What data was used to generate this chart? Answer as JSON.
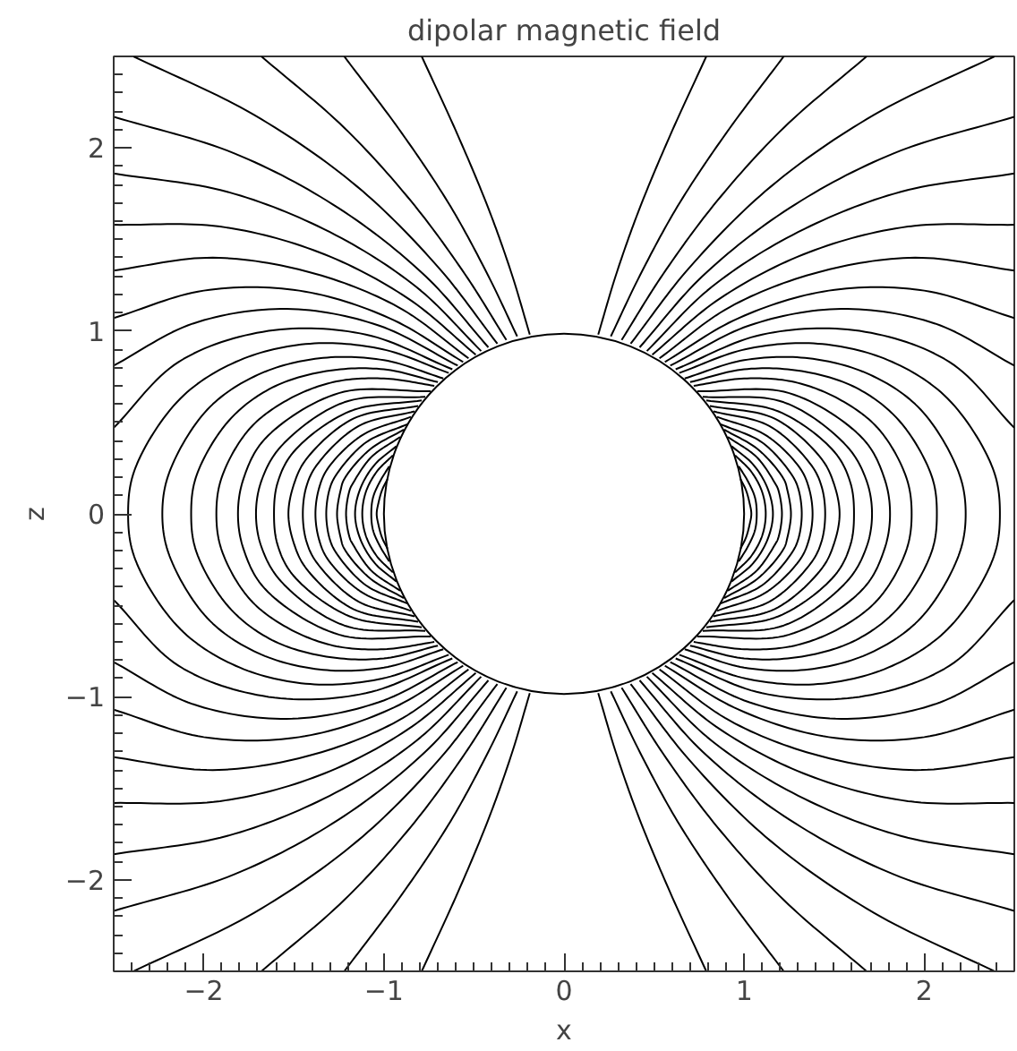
{
  "chart_data": {
    "type": "line",
    "title": "dipolar magnetic field",
    "xlabel": "x",
    "ylabel": "z",
    "xlim": [
      -2.5,
      2.5
    ],
    "ylim": [
      -2.5,
      2.5
    ],
    "xticks": [
      -2,
      -1,
      0,
      1,
      2
    ],
    "yticks": [
      -2,
      -1,
      0,
      1,
      2
    ],
    "series": [
      {
        "color": "#000000",
        "x": [
          0.19,
          0.29,
          0.42,
          0.59,
          0.79
        ],
        "values": [
          0.98,
          1.31,
          1.67,
          2.07,
          2.5
        ]
      },
      {
        "color": "#000000",
        "x": [
          0.19,
          0.29,
          0.42,
          0.59,
          0.79
        ],
        "values": [
          -0.98,
          -1.31,
          -1.67,
          -2.07,
          -2.5
        ]
      },
      {
        "color": "#000000",
        "x": [
          0.26,
          0.42,
          0.63,
          0.9,
          1.22
        ],
        "values": [
          0.97,
          1.3,
          1.68,
          2.08,
          2.5
        ]
      },
      {
        "color": "#000000",
        "x": [
          0.26,
          0.42,
          0.63,
          0.9,
          1.22
        ],
        "values": [
          -0.97,
          -1.3,
          -1.68,
          -2.08,
          -2.5
        ]
      },
      {
        "color": "#000000",
        "x": [
          0.32,
          0.55,
          0.85,
          1.22,
          1.68
        ],
        "values": [
          0.95,
          1.31,
          1.71,
          2.11,
          2.5
        ]
      },
      {
        "color": "#000000",
        "x": [
          0.32,
          0.55,
          0.85,
          1.22,
          1.68
        ],
        "values": [
          -0.95,
          -1.31,
          -1.71,
          -2.11,
          -2.5
        ]
      },
      {
        "color": "#000000",
        "x": [
          0.37,
          0.7,
          1.15,
          1.72,
          2.39
        ],
        "values": [
          0.93,
          1.35,
          1.79,
          2.18,
          2.5
        ]
      },
      {
        "color": "#000000",
        "x": [
          0.37,
          0.7,
          1.15,
          1.72,
          2.39
        ],
        "values": [
          -0.93,
          -1.35,
          -1.79,
          -2.18,
          -2.5
        ]
      },
      {
        "color": "#000000",
        "x": [
          0.42,
          0.77,
          1.25,
          1.83,
          2.5
        ],
        "values": [
          0.91,
          1.3,
          1.67,
          1.97,
          2.17
        ]
      },
      {
        "color": "#000000",
        "x": [
          0.42,
          0.77,
          1.25,
          1.83,
          2.5
        ],
        "values": [
          -0.91,
          -1.3,
          -1.67,
          -1.97,
          -2.17
        ]
      },
      {
        "color": "#000000",
        "x": [
          0.46,
          0.82,
          1.3,
          1.87,
          2.5
        ],
        "values": [
          0.89,
          1.24,
          1.54,
          1.76,
          1.86
        ]
      },
      {
        "color": "#000000",
        "x": [
          0.46,
          0.82,
          1.3,
          1.87,
          2.5
        ],
        "values": [
          -0.89,
          -1.24,
          -1.54,
          -1.76,
          -1.86
        ]
      },
      {
        "color": "#000000",
        "x": [
          0.49,
          0.87,
          1.36,
          1.91,
          2.5
        ],
        "values": [
          0.87,
          1.18,
          1.43,
          1.57,
          1.58
        ]
      },
      {
        "color": "#000000",
        "x": [
          0.49,
          0.87,
          1.36,
          1.91,
          2.5
        ],
        "values": [
          -0.87,
          -1.18,
          -1.43,
          -1.57,
          -1.58
        ]
      },
      {
        "color": "#000000",
        "x": [
          0.53,
          0.92,
          1.41,
          1.95,
          2.5
        ],
        "values": [
          0.85,
          1.13,
          1.32,
          1.4,
          1.33
        ]
      },
      {
        "color": "#000000",
        "x": [
          0.53,
          0.92,
          1.41,
          1.95,
          2.5
        ],
        "values": [
          -0.85,
          -1.13,
          -1.32,
          -1.4,
          -1.33
        ]
      },
      {
        "color": "#000000",
        "x": [
          0.56,
          0.97,
          1.47,
          2.0,
          2.5
        ],
        "values": [
          0.83,
          1.07,
          1.22,
          1.22,
          1.07
        ]
      },
      {
        "color": "#000000",
        "x": [
          0.56,
          0.97,
          1.47,
          2.0,
          2.5
        ],
        "values": [
          -0.83,
          -1.07,
          -1.22,
          -1.22,
          -1.07
        ]
      },
      {
        "color": "#000000",
        "x": [
          0.59,
          1.03,
          1.54,
          2.06,
          2.5
        ],
        "values": [
          0.81,
          1.03,
          1.12,
          1.04,
          0.81
        ]
      },
      {
        "color": "#000000",
        "x": [
          0.59,
          1.03,
          1.54,
          2.06,
          2.5
        ],
        "values": [
          -0.81,
          -1.03,
          -1.12,
          -1.04,
          -0.81
        ]
      },
      {
        "color": "#000000",
        "x": [
          0.62,
          1.1,
          1.64,
          2.14,
          2.5
        ],
        "values": [
          0.79,
          0.98,
          1.0,
          0.83,
          0.47
        ]
      },
      {
        "color": "#000000",
        "x": [
          0.62,
          1.1,
          1.64,
          2.14,
          2.5
        ],
        "values": [
          -0.79,
          -0.98,
          -1.0,
          -0.83,
          -0.47
        ]
      },
      {
        "color": "#000000",
        "x": [
          0.64,
          1.01,
          1.41,
          1.8,
          2.13,
          2.38,
          2.42,
          2.38,
          2.13,
          1.8,
          1.41,
          1.01,
          0.64
        ],
        "values": [
          0.77,
          0.9,
          0.93,
          0.84,
          0.63,
          0.25,
          0,
          -0.25,
          -0.63,
          -0.84,
          -0.93,
          -0.9,
          -0.77
        ]
      },
      {
        "color": "#000000",
        "x": [
          0.67,
          1.0,
          1.36,
          1.7,
          1.98,
          2.19,
          2.23,
          2.19,
          1.98,
          1.7,
          1.36,
          1.0,
          0.67
        ],
        "values": [
          0.74,
          0.84,
          0.85,
          0.76,
          0.57,
          0.23,
          0,
          -0.23,
          -0.57,
          -0.76,
          -0.85,
          -0.84,
          -0.74
        ]
      },
      {
        "color": "#000000",
        "x": [
          0.7,
          1.0,
          1.32,
          1.62,
          1.86,
          2.04,
          2.07,
          2.04,
          1.86,
          1.62,
          1.32,
          1.0,
          0.7
        ],
        "values": [
          0.72,
          0.79,
          0.78,
          0.69,
          0.51,
          0.21,
          0,
          -0.21,
          -0.51,
          -0.69,
          -0.78,
          -0.79,
          -0.72
        ]
      },
      {
        "color": "#000000",
        "x": [
          0.72,
          1.0,
          1.28,
          1.54,
          1.75,
          1.9,
          1.93,
          1.9,
          1.75,
          1.54,
          1.28,
          1.0,
          0.72
        ],
        "values": [
          0.7,
          0.74,
          0.72,
          0.62,
          0.46,
          0.2,
          0,
          -0.2,
          -0.46,
          -0.62,
          -0.72,
          -0.74,
          -0.7
        ]
      },
      {
        "color": "#000000",
        "x": [
          0.74,
          1.25,
          1.66,
          1.78,
          1.81,
          1.78,
          1.66,
          1.25,
          0.74
        ],
        "values": [
          0.67,
          0.66,
          0.41,
          0.19,
          0,
          -0.19,
          -0.41,
          -0.66,
          -0.67
        ]
      },
      {
        "color": "#000000",
        "x": [
          0.77,
          1.22,
          1.57,
          1.68,
          1.71,
          1.68,
          1.57,
          1.22,
          0.77
        ],
        "values": [
          0.64,
          0.61,
          0.37,
          0.18,
          0,
          -0.18,
          -0.37,
          -0.61,
          -0.64
        ]
      },
      {
        "color": "#000000",
        "x": [
          0.79,
          1.19,
          1.5,
          1.59,
          1.61,
          1.59,
          1.5,
          1.19,
          0.79
        ],
        "values": [
          0.62,
          0.56,
          0.34,
          0.17,
          0,
          -0.17,
          -0.34,
          -0.56,
          -0.62
        ]
      },
      {
        "color": "#000000",
        "x": [
          0.81,
          1.17,
          1.43,
          1.5,
          1.53,
          1.5,
          1.43,
          1.17,
          0.81
        ],
        "values": [
          0.59,
          0.52,
          0.3,
          0.16,
          0,
          -0.16,
          -0.3,
          -0.52,
          -0.59
        ]
      },
      {
        "color": "#000000",
        "x": [
          0.83,
          1.14,
          1.37,
          1.43,
          1.45,
          1.43,
          1.37,
          1.14,
          0.83
        ],
        "values": [
          0.56,
          0.48,
          0.27,
          0.15,
          0,
          -0.15,
          -0.27,
          -0.48,
          -0.56
        ]
      },
      {
        "color": "#000000",
        "x": [
          0.85,
          1.12,
          1.31,
          1.36,
          1.38,
          1.36,
          1.31,
          1.12,
          0.85
        ],
        "values": [
          0.53,
          0.43,
          0.25,
          0.14,
          0,
          -0.14,
          -0.25,
          -0.43,
          -0.53
        ]
      },
      {
        "color": "#000000",
        "x": [
          0.87,
          1.1,
          1.26,
          1.3,
          1.32,
          1.3,
          1.26,
          1.1,
          0.87
        ],
        "values": [
          0.49,
          0.39,
          0.22,
          0.14,
          0,
          -0.14,
          -0.22,
          -0.39,
          -0.49
        ]
      },
      {
        "color": "#000000",
        "x": [
          0.89,
          1.08,
          1.22,
          1.24,
          1.26,
          1.24,
          1.22,
          1.08,
          0.89
        ],
        "values": [
          0.46,
          0.35,
          0.19,
          0.13,
          0,
          -0.13,
          -0.19,
          -0.35,
          -0.46
        ]
      },
      {
        "color": "#000000",
        "x": [
          0.91,
          1.07,
          1.17,
          1.19,
          1.21,
          1.19,
          1.17,
          1.07,
          0.91
        ],
        "values": [
          0.42,
          0.31,
          0.17,
          0.13,
          0,
          -0.13,
          -0.17,
          -0.31,
          -0.42
        ]
      },
      {
        "color": "#000000",
        "x": [
          0.93,
          1.05,
          1.13,
          1.16,
          1.13,
          1.05,
          0.93
        ],
        "values": [
          0.37,
          0.27,
          0.14,
          0,
          -0.14,
          -0.27,
          -0.37
        ]
      },
      {
        "color": "#000000",
        "x": [
          0.95,
          1.04,
          1.1,
          1.12,
          1.1,
          1.04,
          0.95
        ],
        "values": [
          0.32,
          0.23,
          0.12,
          0,
          -0.12,
          -0.23,
          -0.32
        ]
      },
      {
        "color": "#000000",
        "x": [
          0.97,
          1.02,
          1.06,
          1.07,
          1.06,
          1.02,
          0.97
        ],
        "values": [
          0.26,
          0.18,
          0.09,
          0,
          -0.09,
          -0.18,
          -0.26
        ]
      },
      {
        "color": "#000000",
        "x": [
          0.98,
          1.01,
          1.03,
          1.04,
          1.03,
          1.01,
          0.98
        ],
        "values": [
          0.19,
          0.13,
          0.06,
          0,
          -0.06,
          -0.13,
          -0.19
        ]
      },
      {
        "color": "#000000",
        "x": [
          -0.19,
          -0.29,
          -0.42,
          -0.59,
          -0.79
        ],
        "values": [
          0.98,
          1.31,
          1.67,
          2.07,
          2.5
        ]
      },
      {
        "color": "#000000",
        "x": [
          -0.19,
          -0.29,
          -0.42,
          -0.59,
          -0.79
        ],
        "values": [
          -0.98,
          -1.31,
          -1.67,
          -2.07,
          -2.5
        ]
      },
      {
        "color": "#000000",
        "x": [
          -0.26,
          -0.42,
          -0.63,
          -0.9,
          -1.22
        ],
        "values": [
          0.97,
          1.3,
          1.68,
          2.08,
          2.5
        ]
      },
      {
        "color": "#000000",
        "x": [
          -0.26,
          -0.42,
          -0.63,
          -0.9,
          -1.22
        ],
        "values": [
          -0.97,
          -1.3,
          -1.68,
          -2.08,
          -2.5
        ]
      },
      {
        "color": "#000000",
        "x": [
          -0.32,
          -0.55,
          -0.85,
          -1.22,
          -1.68
        ],
        "values": [
          0.95,
          1.31,
          1.71,
          2.11,
          2.5
        ]
      },
      {
        "color": "#000000",
        "x": [
          -0.32,
          -0.55,
          -0.85,
          -1.22,
          -1.68
        ],
        "values": [
          -0.95,
          -1.31,
          -1.71,
          -2.11,
          -2.5
        ]
      },
      {
        "color": "#000000",
        "x": [
          -0.37,
          -0.7,
          -1.15,
          -1.72,
          -2.39
        ],
        "values": [
          0.93,
          1.35,
          1.79,
          2.18,
          2.5
        ]
      },
      {
        "color": "#000000",
        "x": [
          -0.37,
          -0.7,
          -1.15,
          -1.72,
          -2.39
        ],
        "values": [
          -0.93,
          -1.35,
          -1.79,
          -2.18,
          -2.5
        ]
      },
      {
        "color": "#000000",
        "x": [
          -0.42,
          -0.77,
          -1.25,
          -1.83,
          -2.5
        ],
        "values": [
          0.91,
          1.3,
          1.67,
          1.97,
          2.17
        ]
      },
      {
        "color": "#000000",
        "x": [
          -0.42,
          -0.77,
          -1.25,
          -1.83,
          -2.5
        ],
        "values": [
          -0.91,
          -1.3,
          -1.67,
          -1.97,
          -2.17
        ]
      },
      {
        "color": "#000000",
        "x": [
          -0.46,
          -0.82,
          -1.3,
          -1.87,
          -2.5
        ],
        "values": [
          0.89,
          1.24,
          1.54,
          1.76,
          1.86
        ]
      },
      {
        "color": "#000000",
        "x": [
          -0.46,
          -0.82,
          -1.3,
          -1.87,
          -2.5
        ],
        "values": [
          -0.89,
          -1.24,
          -1.54,
          -1.76,
          -1.86
        ]
      },
      {
        "color": "#000000",
        "x": [
          -0.49,
          -0.87,
          -1.36,
          -1.91,
          -2.5
        ],
        "values": [
          0.87,
          1.18,
          1.43,
          1.57,
          1.58
        ]
      },
      {
        "color": "#000000",
        "x": [
          -0.49,
          -0.87,
          -1.36,
          -1.91,
          -2.5
        ],
        "values": [
          -0.87,
          -1.18,
          -1.43,
          -1.57,
          -1.58
        ]
      },
      {
        "color": "#000000",
        "x": [
          -0.53,
          -0.92,
          -1.41,
          -1.95,
          -2.5
        ],
        "values": [
          0.85,
          1.13,
          1.32,
          1.4,
          1.33
        ]
      },
      {
        "color": "#000000",
        "x": [
          -0.53,
          -0.92,
          -1.41,
          -1.95,
          -2.5
        ],
        "values": [
          -0.85,
          -1.13,
          -1.32,
          -1.4,
          -1.33
        ]
      },
      {
        "color": "#000000",
        "x": [
          -0.56,
          -0.97,
          -1.47,
          -2.0,
          -2.5
        ],
        "values": [
          0.83,
          1.07,
          1.22,
          1.22,
          1.07
        ]
      },
      {
        "color": "#000000",
        "x": [
          -0.56,
          -0.97,
          -1.47,
          -2.0,
          -2.5
        ],
        "values": [
          -0.83,
          -1.07,
          -1.22,
          -1.22,
          -1.07
        ]
      },
      {
        "color": "#000000",
        "x": [
          -0.59,
          -1.03,
          -1.54,
          -2.06,
          -2.5
        ],
        "values": [
          0.81,
          1.03,
          1.12,
          1.04,
          0.81
        ]
      },
      {
        "color": "#000000",
        "x": [
          -0.59,
          -1.03,
          -1.54,
          -2.06,
          -2.5
        ],
        "values": [
          -0.81,
          -1.03,
          -1.12,
          -1.04,
          -0.81
        ]
      },
      {
        "color": "#000000",
        "x": [
          -0.62,
          -1.1,
          -1.64,
          -2.14,
          -2.5
        ],
        "values": [
          0.79,
          0.98,
          1.0,
          0.83,
          0.47
        ]
      },
      {
        "color": "#000000",
        "x": [
          -0.62,
          -1.1,
          -1.64,
          -2.14,
          -2.5
        ],
        "values": [
          -0.79,
          -0.98,
          -1.0,
          -0.83,
          -0.47
        ]
      },
      {
        "color": "#000000",
        "x": [
          -0.64,
          -1.01,
          -1.41,
          -1.8,
          -2.13,
          -2.38,
          -2.42,
          -2.38,
          -2.13,
          -1.8,
          -1.41,
          -1.01,
          -0.64
        ],
        "values": [
          0.77,
          0.9,
          0.93,
          0.84,
          0.63,
          0.25,
          0,
          -0.25,
          -0.63,
          -0.84,
          -0.93,
          -0.9,
          -0.77
        ]
      },
      {
        "color": "#000000",
        "x": [
          -0.67,
          -1.0,
          -1.36,
          -1.7,
          -1.98,
          -2.19,
          -2.23,
          -2.19,
          -1.98,
          -1.7,
          -1.36,
          -1.0,
          -0.67
        ],
        "values": [
          0.74,
          0.84,
          0.85,
          0.76,
          0.57,
          0.23,
          0,
          -0.23,
          -0.57,
          -0.76,
          -0.85,
          -0.84,
          -0.74
        ]
      },
      {
        "color": "#000000",
        "x": [
          -0.7,
          -1.0,
          -1.32,
          -1.62,
          -1.86,
          -2.04,
          -2.07,
          -2.04,
          -1.86,
          -1.62,
          -1.32,
          -1.0,
          -0.7
        ],
        "values": [
          0.72,
          0.79,
          0.78,
          0.69,
          0.51,
          0.21,
          0,
          -0.21,
          -0.51,
          -0.69,
          -0.78,
          -0.79,
          -0.72
        ]
      },
      {
        "color": "#000000",
        "x": [
          -0.72,
          -1.0,
          -1.28,
          -1.54,
          -1.75,
          -1.9,
          -1.93,
          -1.9,
          -1.75,
          -1.54,
          -1.28,
          -1.0,
          -0.72
        ],
        "values": [
          0.7,
          0.74,
          0.72,
          0.62,
          0.46,
          0.2,
          0,
          -0.2,
          -0.46,
          -0.62,
          -0.72,
          -0.74,
          -0.7
        ]
      },
      {
        "color": "#000000",
        "x": [
          -0.74,
          -1.25,
          -1.66,
          -1.78,
          -1.81,
          -1.78,
          -1.66,
          -1.25,
          -0.74
        ],
        "values": [
          0.67,
          0.66,
          0.41,
          0.19,
          0,
          -0.19,
          -0.41,
          -0.66,
          -0.67
        ]
      },
      {
        "color": "#000000",
        "x": [
          -0.77,
          -1.22,
          -1.57,
          -1.68,
          -1.71,
          -1.68,
          -1.57,
          -1.22,
          -0.77
        ],
        "values": [
          0.64,
          0.61,
          0.37,
          0.18,
          0,
          -0.18,
          -0.37,
          -0.61,
          -0.64
        ]
      },
      {
        "color": "#000000",
        "x": [
          -0.79,
          -1.19,
          -1.5,
          -1.59,
          -1.61,
          -1.59,
          -1.5,
          -1.19,
          -0.79
        ],
        "values": [
          0.62,
          0.56,
          0.34,
          0.17,
          0,
          -0.17,
          -0.34,
          -0.56,
          -0.62
        ]
      },
      {
        "color": "#000000",
        "x": [
          -0.81,
          -1.17,
          -1.43,
          -1.5,
          -1.53,
          -1.5,
          -1.43,
          -1.17,
          -0.81
        ],
        "values": [
          0.59,
          0.52,
          0.3,
          0.16,
          0,
          -0.16,
          -0.3,
          -0.52,
          -0.59
        ]
      },
      {
        "color": "#000000",
        "x": [
          -0.83,
          -1.14,
          -1.37,
          -1.43,
          -1.45,
          -1.43,
          -1.37,
          -1.14,
          -0.83
        ],
        "values": [
          0.56,
          0.48,
          0.27,
          0.15,
          0,
          -0.15,
          -0.27,
          -0.48,
          -0.56
        ]
      },
      {
        "color": "#000000",
        "x": [
          -0.85,
          -1.12,
          -1.31,
          -1.36,
          -1.38,
          -1.36,
          -1.31,
          -1.12,
          -0.85
        ],
        "values": [
          0.53,
          0.43,
          0.25,
          0.14,
          0,
          -0.14,
          -0.25,
          -0.43,
          -0.53
        ]
      },
      {
        "color": "#000000",
        "x": [
          -0.87,
          -1.1,
          -1.26,
          -1.3,
          -1.32,
          -1.3,
          -1.26,
          -1.1,
          -0.87
        ],
        "values": [
          0.49,
          0.39,
          0.22,
          0.14,
          0,
          -0.14,
          -0.22,
          -0.39,
          -0.49
        ]
      },
      {
        "color": "#000000",
        "x": [
          -0.89,
          -1.08,
          -1.22,
          -1.24,
          -1.26,
          -1.24,
          -1.22,
          -1.08,
          -0.89
        ],
        "values": [
          0.46,
          0.35,
          0.19,
          0.13,
          0,
          -0.13,
          -0.19,
          -0.35,
          -0.46
        ]
      },
      {
        "color": "#000000",
        "x": [
          -0.91,
          -1.07,
          -1.17,
          -1.19,
          -1.21,
          -1.19,
          -1.17,
          -1.07,
          -0.91
        ],
        "values": [
          0.42,
          0.31,
          0.17,
          0.13,
          0,
          -0.13,
          -0.17,
          -0.31,
          -0.42
        ]
      },
      {
        "color": "#000000",
        "x": [
          -0.93,
          -1.05,
          -1.13,
          -1.16,
          -1.13,
          -1.05,
          -0.93
        ],
        "values": [
          0.37,
          0.27,
          0.14,
          0,
          -0.14,
          -0.27,
          -0.37
        ]
      },
      {
        "color": "#000000",
        "x": [
          -0.95,
          -1.04,
          -1.1,
          -1.12,
          -1.1,
          -1.04,
          -0.95
        ],
        "values": [
          0.32,
          0.23,
          0.12,
          0,
          -0.12,
          -0.23,
          -0.32
        ]
      },
      {
        "color": "#000000",
        "x": [
          -0.97,
          -1.02,
          -1.06,
          -1.07,
          -1.06,
          -1.02,
          -0.97
        ],
        "values": [
          0.26,
          0.18,
          0.09,
          0,
          -0.09,
          -0.18,
          -0.26
        ]
      },
      {
        "color": "#000000",
        "x": [
          -0.98,
          -1.01,
          -1.03,
          -1.04,
          -1.03,
          -1.01,
          -0.98
        ],
        "values": [
          0.19,
          0.13,
          0.06,
          0,
          -0.06,
          -0.13,
          -0.19
        ]
      }
    ]
  }
}
